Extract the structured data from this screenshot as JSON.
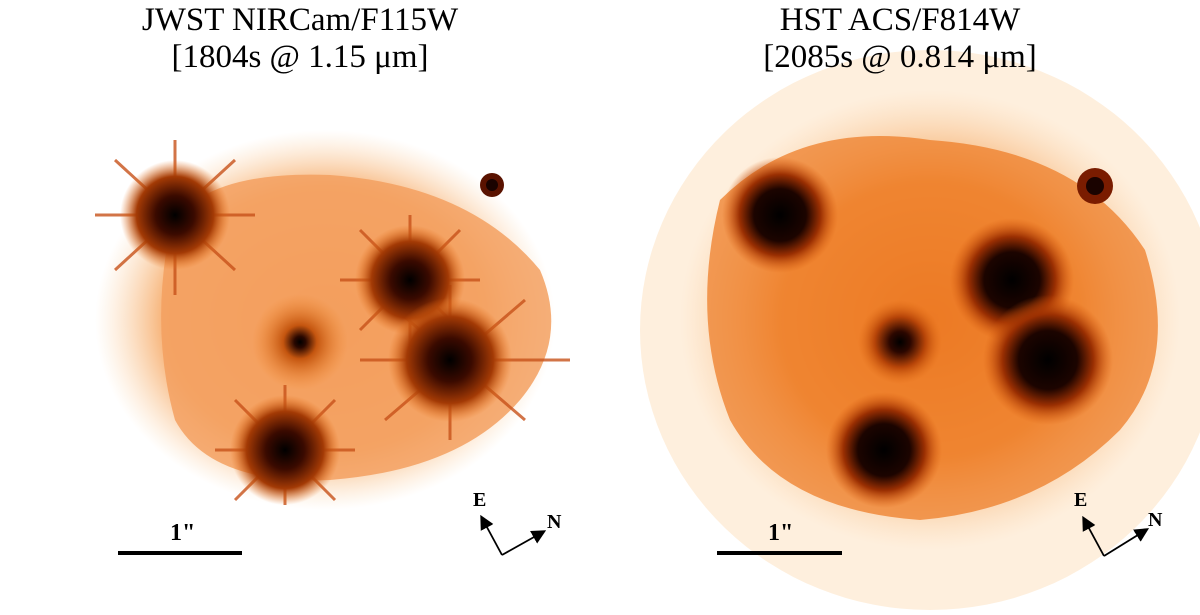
{
  "panels": [
    {
      "title_line1": "JWST NIRCam/F115W",
      "title_line2": "[1804s @ 1.15 μm]",
      "scale_label": "1\"",
      "compass": {
        "east": "E",
        "north": "N"
      }
    },
    {
      "title_line1": "HST ACS/F814W",
      "title_line2": "[2085s @ 0.814 μm]",
      "scale_label": "1\"",
      "compass": {
        "east": "E",
        "north": "N"
      }
    }
  ],
  "colors": {
    "colormap_light": "#fde7c8",
    "colormap_mid": "#f0801e",
    "colormap_dark": "#7a1d00",
    "colormap_core": "#000000"
  }
}
